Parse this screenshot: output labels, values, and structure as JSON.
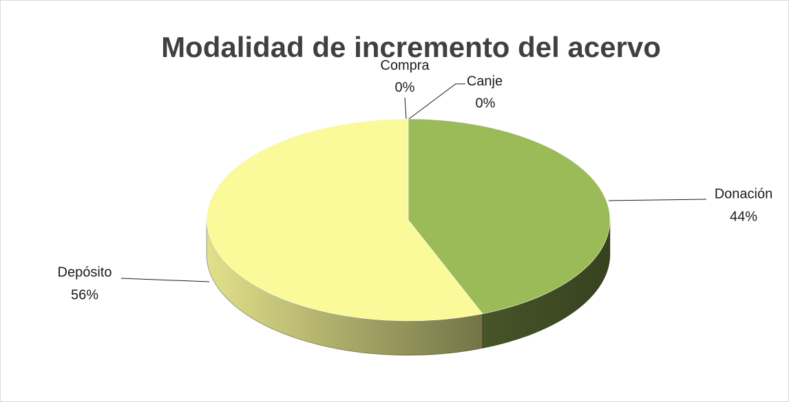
{
  "chart_data": {
    "type": "pie",
    "title": "Modalidad de incremento del acervo",
    "categories": [
      "Compra",
      "Canje",
      "Donación",
      "Depósito"
    ],
    "values": [
      0,
      0,
      44,
      56
    ],
    "value_labels": [
      "0%",
      "0%",
      "44%",
      "56%"
    ],
    "colors": [
      "#4f81bd",
      "#c0504d",
      "#9bbb59",
      "#fafa9b"
    ]
  }
}
